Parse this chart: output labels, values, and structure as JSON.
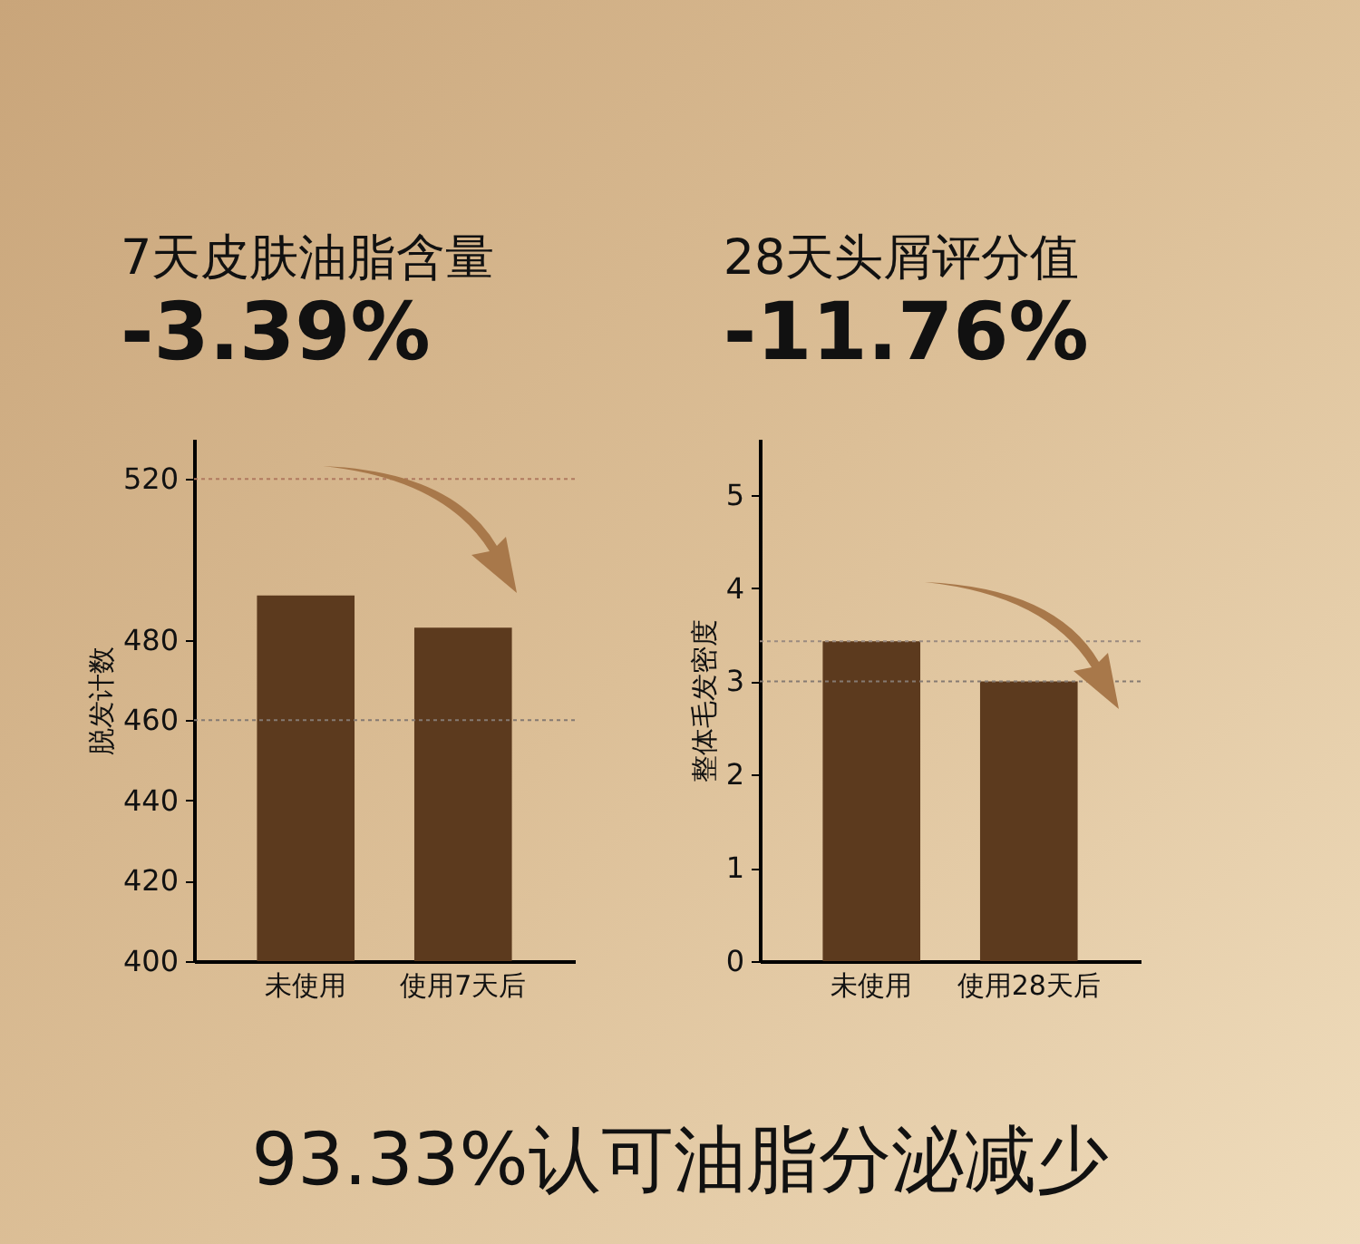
{
  "chart_data": [
    {
      "type": "bar",
      "title": "7天皮肤油脂含量",
      "subtitle": "-3.39%",
      "ylabel": "脱发计数",
      "categories": [
        "未使用",
        "使用7天后"
      ],
      "values": [
        491,
        483
      ],
      "color": "#5c3a1e",
      "ylim": [
        400,
        530
      ],
      "yticks": [
        400,
        420,
        440,
        460,
        480,
        520
      ],
      "grid": false,
      "ref_lines": [
        {
          "axis": "y",
          "value": 520,
          "color": "#b07a60",
          "line_style": "dotted"
        },
        {
          "axis": "y",
          "value": 460,
          "color": "#857a72",
          "line_style": "dotted"
        }
      ]
    },
    {
      "type": "bar",
      "title": "28天头屑评分值",
      "subtitle": "-11.76%",
      "ylabel": "整体毛发密度",
      "categories": [
        "未使用",
        "使用28天后"
      ],
      "values": [
        3.43,
        3.0
      ],
      "color": "#5c3a1e",
      "ylim": [
        0,
        5.6
      ],
      "yticks": [
        0,
        1,
        2,
        3,
        4,
        5
      ],
      "grid": false,
      "ref_lines": [
        {
          "axis": "y",
          "value": 3.43,
          "color": "#9a8a80",
          "line_style": "dotted"
        },
        {
          "axis": "y",
          "value": 3.0,
          "color": "#857a72",
          "line_style": "dotted"
        }
      ],
      "annotations": [
        "93.33%认可油脂分泌减少"
      ]
    }
  ]
}
